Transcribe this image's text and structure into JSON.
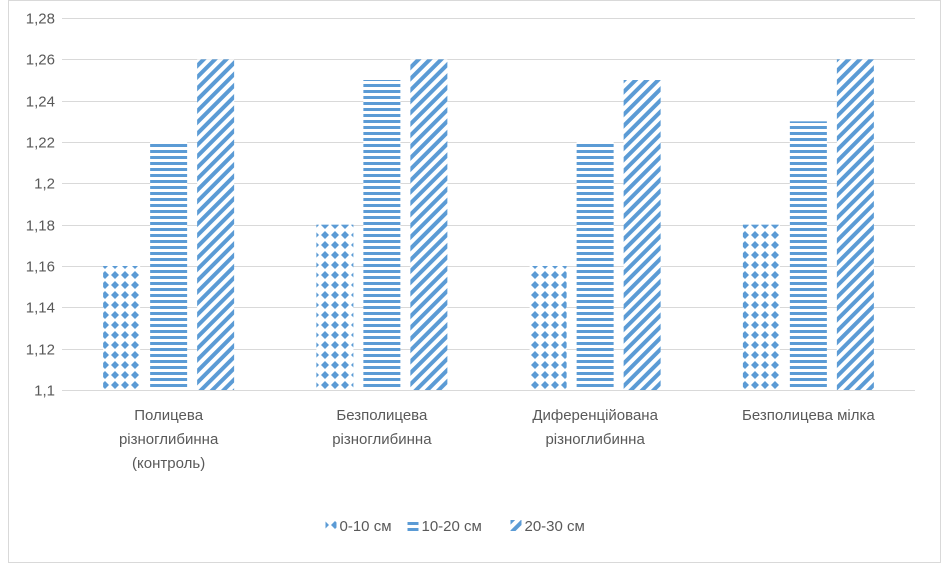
{
  "chart_data": {
    "type": "bar",
    "title": "",
    "xlabel": "",
    "ylabel": "",
    "ylim": [
      1.1,
      1.28
    ],
    "y_ticks": [
      "1,1",
      "1,12",
      "1,14",
      "1,16",
      "1,18",
      "1,2",
      "1,22",
      "1,24",
      "1,26",
      "1,28"
    ],
    "grid": true,
    "legend_position": "bottom",
    "categories": [
      [
        "Полицева",
        "різноглибинна",
        "(контроль)"
      ],
      [
        "Безполицева",
        "різноглибинна"
      ],
      [
        "Диференційована",
        "різноглибинна"
      ],
      [
        "Безполицева мілка"
      ]
    ],
    "series": [
      {
        "name": "0-10 см",
        "values": [
          1.16,
          1.18,
          1.16,
          1.18
        ],
        "pattern": "dots"
      },
      {
        "name": "10-20 см",
        "values": [
          1.22,
          1.25,
          1.22,
          1.23
        ],
        "pattern": "horizontal-stripes"
      },
      {
        "name": "20-30 см",
        "values": [
          1.26,
          1.26,
          1.25,
          1.26
        ],
        "pattern": "diagonal-stripes"
      }
    ],
    "colors": {
      "bar": "#5b9bd5",
      "grid": "#d9d9d9",
      "axis": "#d9d9d9",
      "text": "#595959"
    }
  }
}
